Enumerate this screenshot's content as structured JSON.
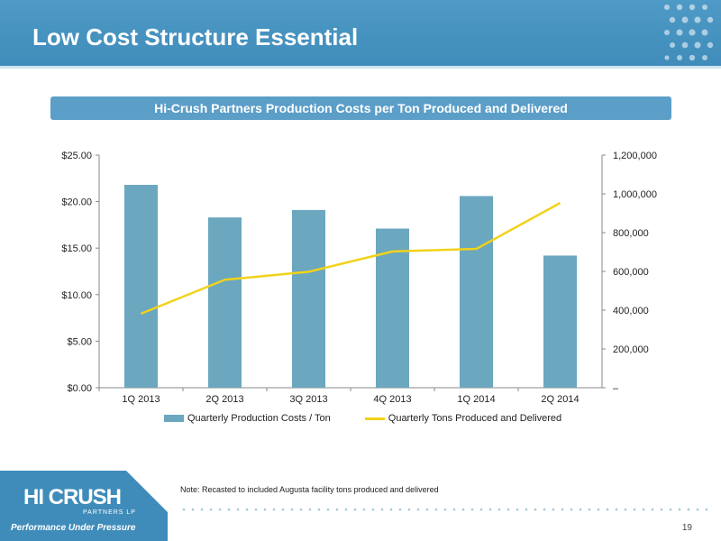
{
  "slide": {
    "title": "Low Cost Structure Essential",
    "subtitle": "Hi-Crush Partners Production Costs per Ton Produced and Delivered",
    "note": "Note: Recasted to included Augusta facility tons produced and delivered",
    "page_number": "19"
  },
  "logo": {
    "main": "HI CRUSH",
    "sub": "PARTNERS LP",
    "tagline": "Performance Under Pressure"
  },
  "colors": {
    "bar": "#6ba7bf",
    "line": "#f2d21a",
    "header": "#4f9ac6",
    "subtitle_bar": "#5b9ec7"
  },
  "chart_data": {
    "type": "bar",
    "categories": [
      "1Q 2013",
      "2Q 2013",
      "3Q 2013",
      "4Q 2013",
      "1Q 2014",
      "2Q 2014"
    ],
    "series": [
      {
        "name": "Quarterly Production Costs / Ton",
        "type": "bar",
        "axis": "left",
        "values": [
          21.8,
          18.3,
          19.1,
          17.1,
          20.6,
          14.2
        ]
      },
      {
        "name": "Quarterly Tons Produced and Delivered",
        "type": "line",
        "axis": "right",
        "values": [
          382000,
          557000,
          598000,
          703000,
          716000,
          953000
        ]
      }
    ],
    "y_left": {
      "ylim": [
        0,
        25
      ],
      "ticks": [
        "$0.00",
        "$5.00",
        "$10.00",
        "$15.00",
        "$20.00",
        "$25.00"
      ]
    },
    "y_right": {
      "ylim": [
        0,
        1200000
      ],
      "ticks": [
        "–",
        "200,000",
        "400,000",
        "600,000",
        "800,000",
        "1,000,000",
        "1,200,000"
      ]
    },
    "grid": false,
    "legend": "bottom"
  }
}
